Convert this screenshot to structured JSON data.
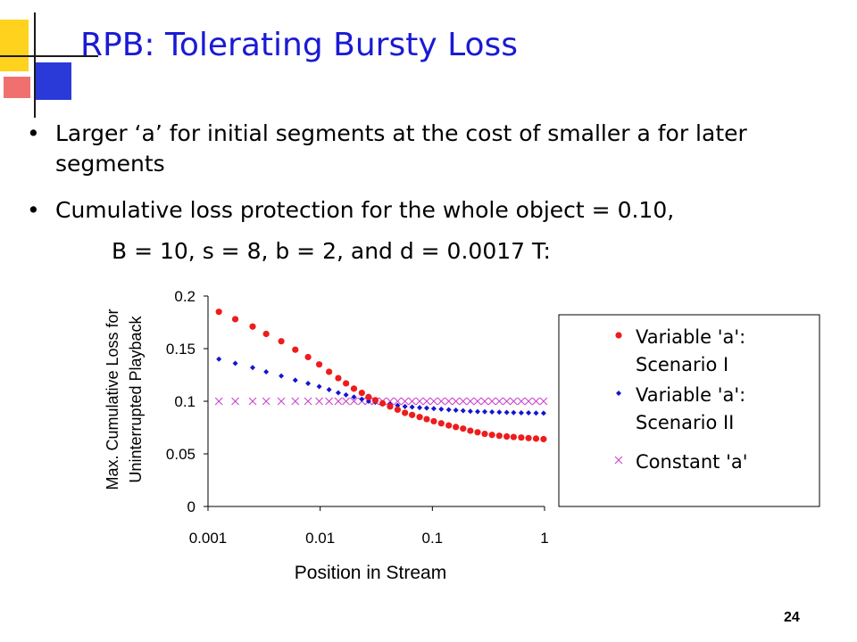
{
  "slide": {
    "title": "RPB: Tolerating Bursty Loss",
    "bullets": [
      "Larger ‘a’ for initial segments at the cost of smaller a for later segments",
      "Cumulative loss protection for the whole object = 0.10,"
    ],
    "bullet2_continuation": "B = 10, s = 8, b = 2, and d = 0.0017 T:",
    "bullet_glyph": "•",
    "page_number": "24"
  },
  "chart_data": {
    "type": "scatter",
    "xscale": "log",
    "xlabel": "Position in Stream",
    "ylabel_lines": [
      "Max. Cumulative Loss for",
      "Uninterrupted Playback"
    ],
    "xlim": [
      0.001,
      1
    ],
    "ylim": [
      0,
      0.2
    ],
    "xticks": [
      "0.001",
      "0.01",
      "0.1",
      "1"
    ],
    "xtick_values": [
      0.001,
      0.01,
      0.1,
      1
    ],
    "yticks": [
      "0",
      "0.05",
      "0.1",
      "0.15",
      "0.2"
    ],
    "ytick_values": [
      0,
      0.05,
      0.1,
      0.15,
      0.2
    ],
    "grid": false,
    "legend_position": "right",
    "series": [
      {
        "name_lines": [
          "Variable 'a':",
          "Scenario I"
        ],
        "marker": "circle",
        "color": "#ee1c1c",
        "x": [
          0.00125,
          0.00175,
          0.0025,
          0.0033,
          0.0045,
          0.006,
          0.0078,
          0.0098,
          0.012,
          0.0145,
          0.017,
          0.02,
          0.0235,
          0.027,
          0.031,
          0.036,
          0.042,
          0.049,
          0.057,
          0.066,
          0.077,
          0.089,
          0.103,
          0.12,
          0.14,
          0.162,
          0.188,
          0.218,
          0.253,
          0.293,
          0.34,
          0.395,
          0.46,
          0.53,
          0.62,
          0.72,
          0.84,
          0.98
        ],
        "y": [
          0.185,
          0.178,
          0.171,
          0.164,
          0.157,
          0.149,
          0.142,
          0.135,
          0.128,
          0.122,
          0.117,
          0.112,
          0.108,
          0.104,
          0.101,
          0.098,
          0.095,
          0.092,
          0.089,
          0.087,
          0.085,
          0.083,
          0.081,
          0.079,
          0.077,
          0.0755,
          0.074,
          0.072,
          0.0705,
          0.069,
          0.068,
          0.0672,
          0.0665,
          0.066,
          0.0655,
          0.065,
          0.0645,
          0.064
        ]
      },
      {
        "name_lines": [
          "Variable 'a':",
          "Scenario II"
        ],
        "marker": "diamond",
        "color": "#1414d2",
        "x": [
          0.00125,
          0.00175,
          0.0025,
          0.0033,
          0.0045,
          0.006,
          0.0078,
          0.0098,
          0.012,
          0.0145,
          0.017,
          0.02,
          0.0235,
          0.027,
          0.031,
          0.036,
          0.042,
          0.049,
          0.057,
          0.066,
          0.077,
          0.089,
          0.103,
          0.12,
          0.14,
          0.162,
          0.188,
          0.218,
          0.253,
          0.293,
          0.34,
          0.395,
          0.46,
          0.53,
          0.62,
          0.72,
          0.84,
          0.98
        ],
        "y": [
          0.14,
          0.136,
          0.132,
          0.128,
          0.124,
          0.12,
          0.117,
          0.114,
          0.111,
          0.108,
          0.106,
          0.104,
          0.102,
          0.1,
          0.099,
          0.098,
          0.097,
          0.096,
          0.095,
          0.0945,
          0.094,
          0.0935,
          0.093,
          0.0925,
          0.092,
          0.0915,
          0.091,
          0.0905,
          0.0902,
          0.09,
          0.0898,
          0.0896,
          0.0894,
          0.0892,
          0.089,
          0.089,
          0.0888,
          0.0887
        ]
      },
      {
        "name_lines": [
          "Constant 'a'"
        ],
        "marker": "x",
        "color": "#cc44cc",
        "x": [
          0.00125,
          0.00175,
          0.0025,
          0.0033,
          0.0045,
          0.006,
          0.0078,
          0.0098,
          0.012,
          0.0145,
          0.017,
          0.02,
          0.0235,
          0.027,
          0.031,
          0.036,
          0.042,
          0.049,
          0.057,
          0.066,
          0.077,
          0.089,
          0.103,
          0.12,
          0.14,
          0.162,
          0.188,
          0.218,
          0.253,
          0.293,
          0.34,
          0.395,
          0.46,
          0.53,
          0.62,
          0.72,
          0.84,
          0.98
        ],
        "y": [
          0.1,
          0.1,
          0.1,
          0.1,
          0.1,
          0.1,
          0.1,
          0.1,
          0.1,
          0.1,
          0.1,
          0.1,
          0.1,
          0.1,
          0.1,
          0.1,
          0.1,
          0.1,
          0.1,
          0.1,
          0.1,
          0.1,
          0.1,
          0.1,
          0.1,
          0.1,
          0.1,
          0.1,
          0.1,
          0.1,
          0.1,
          0.1,
          0.1,
          0.1,
          0.1,
          0.1,
          0.1,
          0.1
        ]
      }
    ]
  },
  "decor_colors": {
    "yellow": "#ffd21e",
    "blue": "#2a3ad8",
    "pink": "#f07070",
    "line": "#1a1a1a"
  }
}
